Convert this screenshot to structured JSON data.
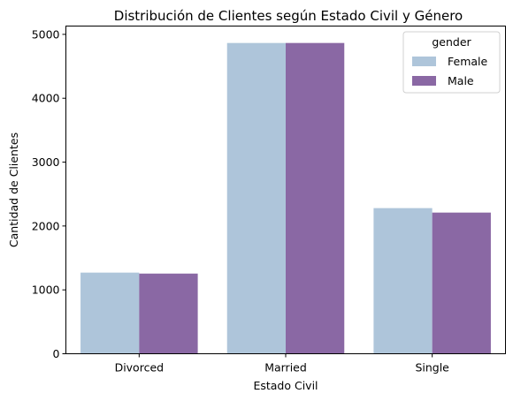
{
  "chart_data": {
    "type": "bar",
    "title": "Distribución de Clientes según Estado Civil y Género",
    "xlabel": "Estado Civil",
    "ylabel": "Cantidad de Clientes",
    "categories": [
      "Divorced",
      "Married",
      "Single"
    ],
    "series": [
      {
        "name": "Female",
        "values": [
          1270,
          4865,
          2280
        ],
        "color": "#aec5da"
      },
      {
        "name": "Male",
        "values": [
          1255,
          4865,
          2210
        ],
        "color": "#8a68a4"
      }
    ],
    "ylim": [
      0,
      5130
    ],
    "yticks": [
      0,
      1000,
      2000,
      3000,
      4000,
      5000
    ],
    "legend": {
      "title": "gender",
      "position": "top-right"
    },
    "grid": false
  }
}
